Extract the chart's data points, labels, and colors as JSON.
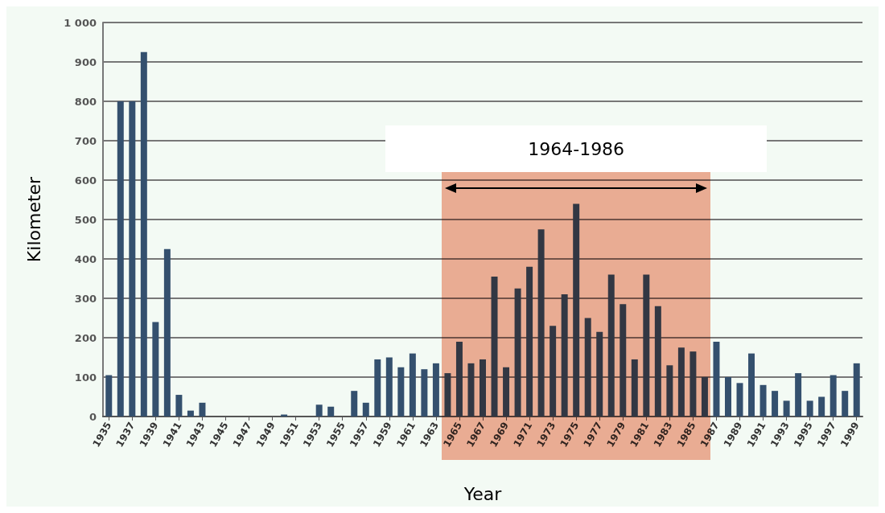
{
  "chart_data": {
    "type": "bar",
    "xlabel": "Year",
    "ylabel": "Kilometer",
    "categories": [
      "1935",
      null,
      "1937",
      null,
      "1939",
      null,
      "1941",
      null,
      "1943",
      null,
      "1945",
      null,
      "1947",
      null,
      "1949",
      null,
      "1951",
      null,
      "1953",
      null,
      "1955",
      null,
      "1957",
      null,
      "1959",
      null,
      "1961",
      null,
      "1963",
      null,
      "1965",
      null,
      "1967",
      null,
      "1969",
      null,
      "1971",
      null,
      "1973",
      null,
      "1975",
      null,
      "1977",
      null,
      "1979",
      null,
      "1981",
      null,
      "1983",
      null,
      "1985",
      null,
      "1987",
      null,
      "1989",
      null,
      "1991",
      null,
      "1993",
      null,
      "1995",
      null,
      "1997",
      null,
      "1999"
    ],
    "values": [
      105,
      800,
      800,
      925,
      240,
      425,
      55,
      15,
      35,
      0,
      0,
      0,
      0,
      0,
      0,
      5,
      0,
      0,
      30,
      25,
      0,
      65,
      35,
      145,
      150,
      125,
      160,
      120,
      135,
      110,
      190,
      135,
      145,
      355,
      125,
      325,
      380,
      475,
      230,
      310,
      540,
      250,
      215,
      360,
      285,
      145,
      360,
      280,
      130,
      175,
      165,
      100,
      190,
      100,
      85,
      160,
      80,
      65,
      40,
      110,
      40,
      50,
      105,
      65,
      135
    ],
    "color": "#34506e",
    "ylim": [
      0,
      1000
    ],
    "yticks": [
      0,
      100,
      200,
      300,
      400,
      500,
      600,
      700,
      800,
      900,
      {
        "value": 1000,
        "label": "1 000"
      }
    ],
    "grid": "y",
    "annotations": [
      "1964-1986"
    ]
  }
}
